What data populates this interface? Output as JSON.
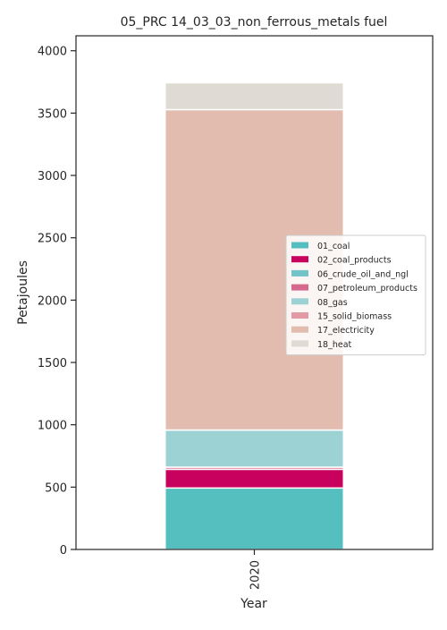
{
  "chart_data": {
    "type": "bar",
    "stacked": true,
    "title": "05_PRC 14_03_03_non_ferrous_metals fuel",
    "xlabel": "Year",
    "ylabel": "Petajoules",
    "categories": [
      "2020"
    ],
    "ylim": [
      0,
      4120
    ],
    "yticks": [
      0,
      500,
      1000,
      1500,
      2000,
      2500,
      3000,
      3500,
      4000
    ],
    "legend_position": "center-right",
    "series": [
      {
        "name": "01_coal",
        "values": [
          493
        ],
        "color": "#55bfbf"
      },
      {
        "name": "02_coal_products",
        "values": [
          150
        ],
        "color": "#c8005e"
      },
      {
        "name": "06_crude_oil_and_ngl",
        "values": [
          0
        ],
        "color": "#72c4c9"
      },
      {
        "name": "07_petroleum_products",
        "values": [
          17
        ],
        "color": "#d6678d"
      },
      {
        "name": "08_gas",
        "values": [
          298
        ],
        "color": "#9dd2d4"
      },
      {
        "name": "15_solid_biomass",
        "values": [
          0
        ],
        "color": "#e19aa6"
      },
      {
        "name": "17_electricity",
        "values": [
          2570
        ],
        "color": "#e2bcae"
      },
      {
        "name": "18_heat",
        "values": [
          215
        ],
        "color": "#dfdad3"
      }
    ]
  }
}
